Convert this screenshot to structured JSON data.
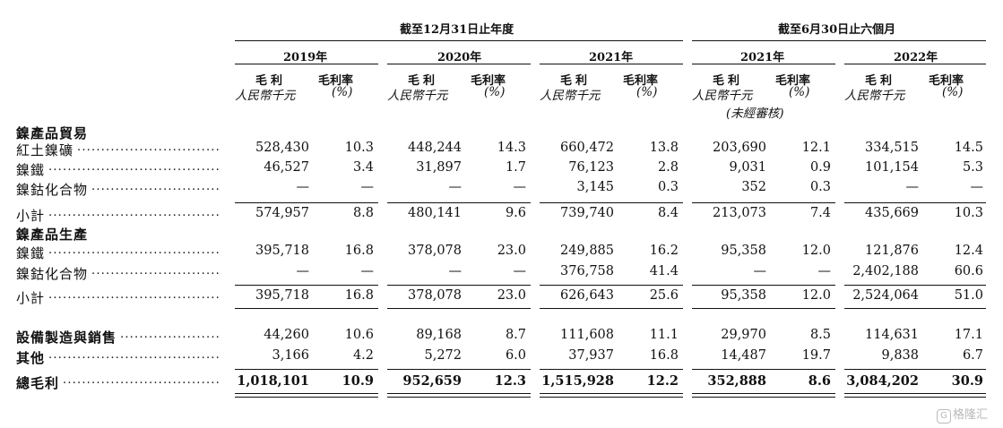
{
  "headers": {
    "period_year": "截至12月31日止年度",
    "period_half": "截至6月30日止六個月",
    "years": [
      "2019年",
      "2020年",
      "2021年",
      "2021年",
      "2022年"
    ],
    "col_gp": "毛利",
    "col_gp_unit": "人民幣千元",
    "col_gm": "毛利率",
    "col_gm_unit": "(%)",
    "unaudited": "(未經審核)"
  },
  "rows": [
    {
      "type": "section",
      "label": "鎳產品貿易"
    },
    {
      "type": "data",
      "label": "紅土鎳礦",
      "values": [
        "528,430",
        "10.3",
        "448,244",
        "14.3",
        "660,472",
        "13.8",
        "203,690",
        "12.1",
        "334,515",
        "14.5"
      ]
    },
    {
      "type": "data",
      "label": "鎳鐵",
      "values": [
        "46,527",
        "3.4",
        "31,897",
        "1.7",
        "76,123",
        "2.8",
        "9,031",
        "0.9",
        "101,154",
        "5.3"
      ]
    },
    {
      "type": "data",
      "label": "鎳鈷化合物",
      "values": [
        "—",
        "—",
        "—",
        "—",
        "3,145",
        "0.3",
        "352",
        "0.3",
        "—",
        "—"
      ]
    },
    {
      "type": "subtotal",
      "label": "小計",
      "values": [
        "574,957",
        "8.8",
        "480,141",
        "9.6",
        "739,740",
        "8.4",
        "213,073",
        "7.4",
        "435,669",
        "10.3"
      ]
    },
    {
      "type": "section",
      "label": "鎳產品生產"
    },
    {
      "type": "data",
      "label": "鎳鐵",
      "values": [
        "395,718",
        "16.8",
        "378,078",
        "23.0",
        "249,885",
        "16.2",
        "95,358",
        "12.0",
        "121,876",
        "12.4"
      ]
    },
    {
      "type": "data",
      "label": "鎳鈷化合物",
      "values": [
        "—",
        "—",
        "—",
        "—",
        "376,758",
        "41.4",
        "—",
        "—",
        "2,402,188",
        "60.6"
      ]
    },
    {
      "type": "subtotal",
      "label": "小計",
      "values": [
        "395,718",
        "16.8",
        "378,078",
        "23.0",
        "626,643",
        "25.6",
        "95,358",
        "12.0",
        "2,524,064",
        "51.0"
      ]
    },
    {
      "type": "data-bold",
      "label": "設備製造與銷售",
      "values": [
        "44,260",
        "10.6",
        "89,168",
        "8.7",
        "111,608",
        "11.1",
        "29,970",
        "8.5",
        "114,631",
        "17.1"
      ]
    },
    {
      "type": "data-bold",
      "label": "其他",
      "values": [
        "3,166",
        "4.2",
        "5,272",
        "6.0",
        "37,937",
        "16.8",
        "14,487",
        "19.7",
        "9,838",
        "6.7"
      ]
    },
    {
      "type": "total",
      "label": "總毛利",
      "values": [
        "1,018,101",
        "10.9",
        "952,659",
        "12.3",
        "1,515,928",
        "12.2",
        "352,888",
        "8.6",
        "3,084,202",
        "30.9"
      ]
    }
  ],
  "watermark": {
    "icon": "G",
    "text": "格隆汇"
  }
}
